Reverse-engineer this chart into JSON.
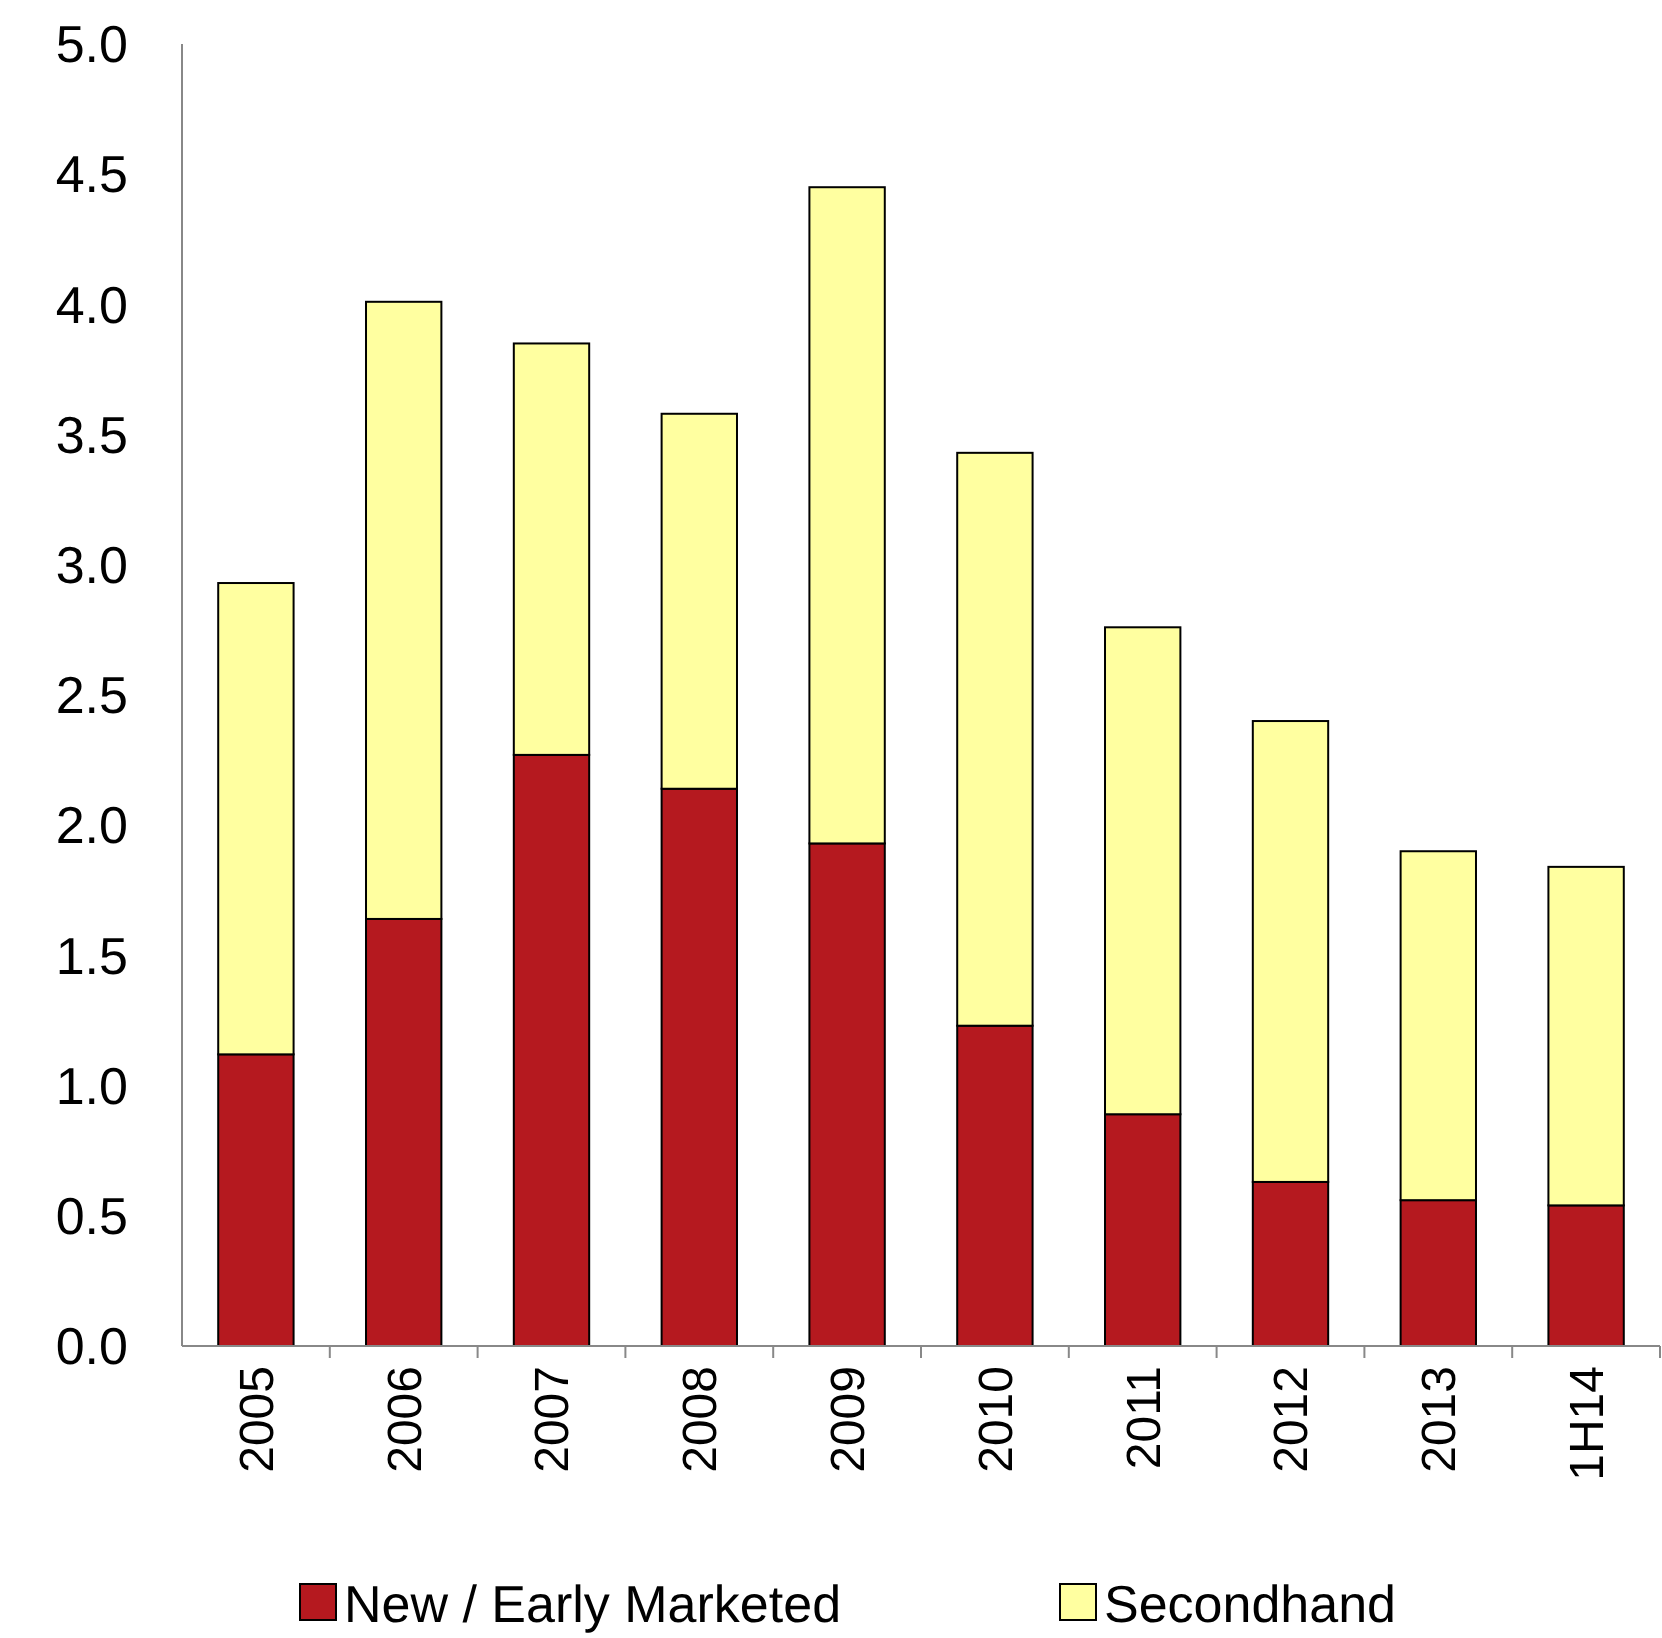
{
  "chart_data": {
    "type": "bar",
    "stacked": true,
    "categories": [
      "2005",
      "2006",
      "2007",
      "2008",
      "2009",
      "2010",
      "2011",
      "2012",
      "2013",
      "1H14"
    ],
    "series": [
      {
        "name": "New / Early Marketed",
        "color": "#b5191f",
        "values": [
          1.12,
          1.64,
          2.27,
          2.14,
          1.93,
          1.23,
          0.89,
          0.63,
          0.56,
          0.54
        ]
      },
      {
        "name": "Secondhand",
        "color": "#ffffa0",
        "values": [
          1.81,
          2.37,
          1.58,
          1.44,
          2.52,
          2.2,
          1.87,
          1.77,
          1.34,
          1.3
        ]
      }
    ],
    "ylim": [
      0,
      5
    ],
    "yticks": [
      {
        "value": 0,
        "label": "0.0"
      },
      {
        "value": 0.5,
        "label": "0.5"
      },
      {
        "value": 1,
        "label": "1.0"
      },
      {
        "value": 1.5,
        "label": "1.5"
      },
      {
        "value": 2,
        "label": "2.0"
      },
      {
        "value": 2.5,
        "label": "2.5"
      },
      {
        "value": 3,
        "label": "3.0"
      },
      {
        "value": 3.5,
        "label": "3.5"
      },
      {
        "value": 4,
        "label": "4.0"
      },
      {
        "value": 4.5,
        "label": "4.5"
      },
      {
        "value": 5,
        "label": "5.0"
      }
    ],
    "grid": false,
    "legend": "bottom"
  }
}
